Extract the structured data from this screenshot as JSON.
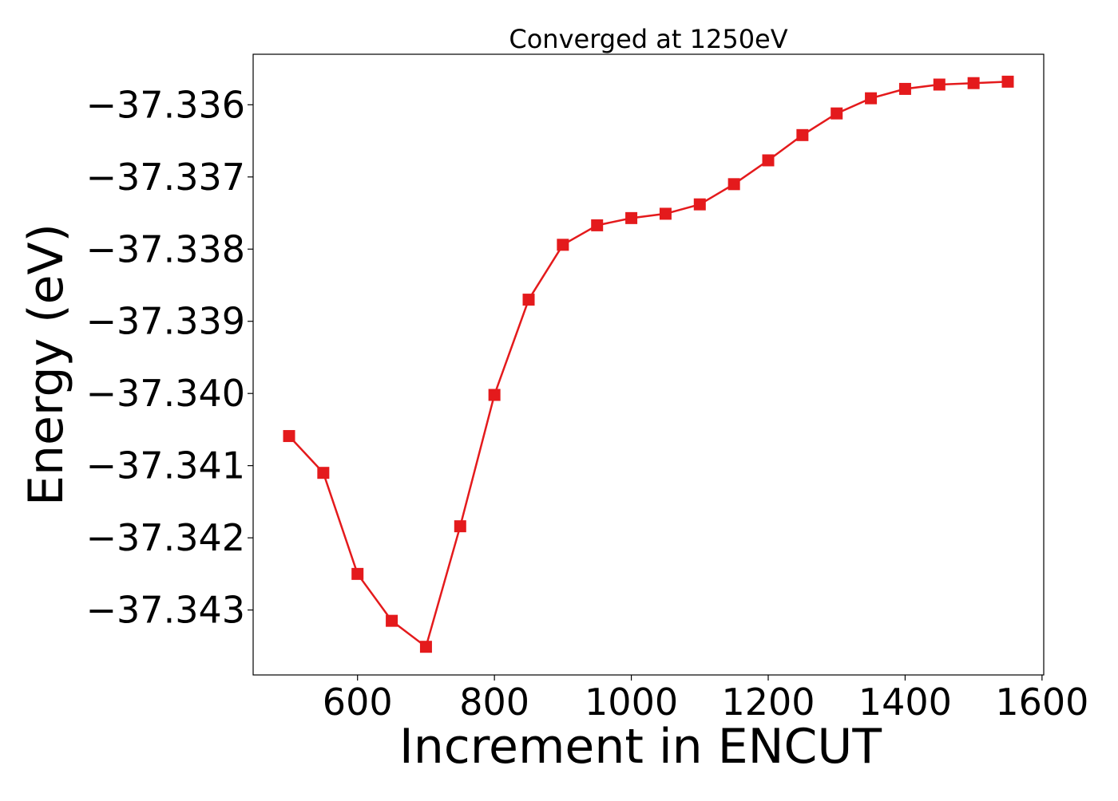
{
  "chart_data": {
    "type": "line",
    "title": "Converged at 1250eV",
    "xlabel": "Increment in ENCUT",
    "ylabel": "Energy (eV)",
    "xlim": [
      447.5,
      1602.5
    ],
    "ylim": [
      -37.3439,
      -37.3353
    ],
    "x_ticks": [
      600,
      800,
      1000,
      1200,
      1400,
      1600
    ],
    "x_tick_labels": [
      "600",
      "800",
      "1000",
      "1200",
      "1400",
      "1600"
    ],
    "y_ticks": [
      -37.343,
      -37.342,
      -37.341,
      -37.34,
      -37.339,
      -37.338,
      -37.337,
      -37.336
    ],
    "y_tick_labels": [
      "−37.343",
      "−37.342",
      "−37.341",
      "−37.340",
      "−37.339",
      "−37.338",
      "−37.337",
      "−37.336"
    ],
    "grid": false,
    "series": [
      {
        "color": "#e41a1c",
        "marker": "square",
        "x": [
          500,
          550,
          600,
          650,
          700,
          750,
          800,
          850,
          900,
          950,
          1000,
          1050,
          1100,
          1150,
          1200,
          1250,
          1300,
          1350,
          1400,
          1450,
          1500,
          1550
        ],
        "y": [
          -37.34059,
          -37.3411,
          -37.3425,
          -37.34315,
          -37.34351,
          -37.34184,
          -37.34002,
          -37.3387,
          -37.33794,
          -37.33767,
          -37.33757,
          -37.33751,
          -37.33738,
          -37.3371,
          -37.33677,
          -37.33642,
          -37.33612,
          -37.33591,
          -37.33578,
          -37.33572,
          -37.3357,
          -37.33568
        ]
      }
    ]
  }
}
